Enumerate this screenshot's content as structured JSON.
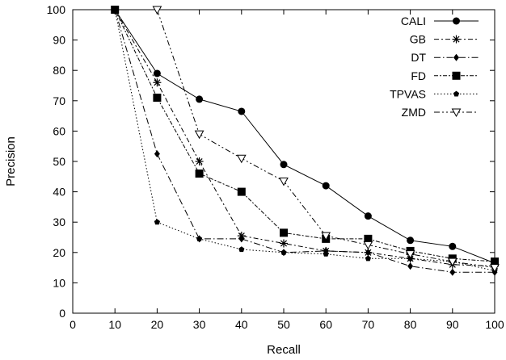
{
  "chart_data": {
    "type": "line",
    "title": "",
    "xlabel": "Recall",
    "ylabel": "Precision",
    "xlim": [
      0,
      100
    ],
    "ylim": [
      0,
      100
    ],
    "xticks": [
      0,
      10,
      20,
      30,
      40,
      50,
      60,
      70,
      80,
      90,
      100
    ],
    "yticks": [
      0,
      10,
      20,
      30,
      40,
      50,
      60,
      70,
      80,
      90,
      100
    ],
    "grid": false,
    "legend_position": "top-right",
    "color": "#000000",
    "series": [
      {
        "name": "CALI",
        "marker": "circle",
        "dash": "solid",
        "points": [
          [
            10,
            100
          ],
          [
            20,
            79
          ],
          [
            30,
            70.5
          ],
          [
            40,
            66.5
          ],
          [
            50,
            49
          ],
          [
            60,
            42
          ],
          [
            70,
            32
          ],
          [
            80,
            24
          ],
          [
            90,
            22
          ],
          [
            100,
            16.5
          ]
        ]
      },
      {
        "name": "GB",
        "marker": "asterisk",
        "dash": "dashdot",
        "points": [
          [
            10,
            100
          ],
          [
            20,
            76
          ],
          [
            30,
            50
          ],
          [
            40,
            25.5
          ],
          [
            50,
            23
          ],
          [
            60,
            20.5
          ],
          [
            70,
            20
          ],
          [
            80,
            18
          ],
          [
            90,
            16
          ],
          [
            100,
            15.5
          ]
        ]
      },
      {
        "name": "DT",
        "marker": "diamond",
        "dash": "dashdot2",
        "points": [
          [
            10,
            100
          ],
          [
            20,
            52.5
          ],
          [
            30,
            24.5
          ],
          [
            40,
            24.5
          ],
          [
            50,
            20
          ],
          [
            60,
            20.5
          ],
          [
            70,
            20
          ],
          [
            80,
            15.5
          ],
          [
            90,
            13.5
          ],
          [
            100,
            13.5
          ]
        ]
      },
      {
        "name": "FD",
        "marker": "square",
        "dash": "dashdot3",
        "points": [
          [
            10,
            100
          ],
          [
            20,
            71
          ],
          [
            30,
            46
          ],
          [
            40,
            40
          ],
          [
            50,
            26.5
          ],
          [
            60,
            24.5
          ],
          [
            70,
            24.5
          ],
          [
            80,
            20.5
          ],
          [
            90,
            18
          ],
          [
            100,
            17
          ]
        ]
      },
      {
        "name": "TPVAS",
        "marker": "pentagon",
        "dash": "dotted",
        "points": [
          [
            10,
            100
          ],
          [
            20,
            30
          ],
          [
            30,
            24.5
          ],
          [
            40,
            21
          ],
          [
            50,
            20
          ],
          [
            60,
            19.5
          ],
          [
            70,
            18
          ],
          [
            80,
            18
          ],
          [
            90,
            17
          ],
          [
            100,
            14
          ]
        ]
      },
      {
        "name": "ZMD",
        "marker": "triangle-down",
        "dash": "dashdot4",
        "points": [
          [
            20,
            100
          ],
          [
            30,
            59
          ],
          [
            40,
            51
          ],
          [
            50,
            43.5
          ],
          [
            60,
            25.5
          ],
          [
            70,
            22.5
          ],
          [
            80,
            19.5
          ],
          [
            90,
            17
          ],
          [
            100,
            15
          ]
        ]
      }
    ]
  }
}
